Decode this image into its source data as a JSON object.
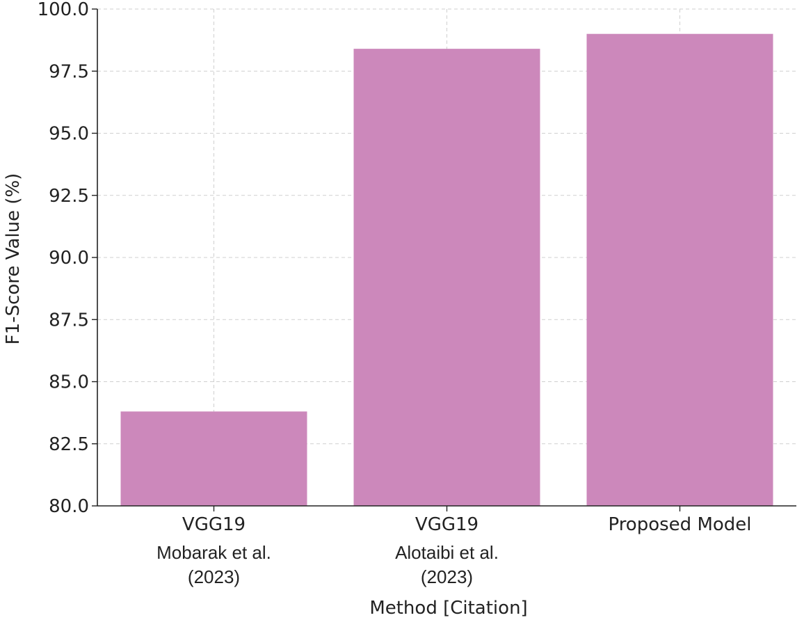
{
  "chart_data": {
    "type": "bar",
    "title": "",
    "xlabel": "Method [Citation]",
    "ylabel": "F1-Score Value (%)",
    "ylim": [
      80.0,
      100.0
    ],
    "yticks": [
      "80.0",
      "82.5",
      "85.0",
      "87.5",
      "90.0",
      "92.5",
      "95.0",
      "97.5",
      "100.0"
    ],
    "grid": true,
    "bar_color": "#cc88bb",
    "categories": [
      {
        "method": "VGG19",
        "citation_line1": "Mobarak et al.",
        "citation_line2": "(2023)"
      },
      {
        "method": "VGG19",
        "citation_line1": "Alotaibi et al.",
        "citation_line2": "(2023)"
      },
      {
        "method": "Proposed Model",
        "citation_line1": "",
        "citation_line2": ""
      }
    ],
    "values": [
      83.8,
      98.4,
      99.0
    ]
  }
}
